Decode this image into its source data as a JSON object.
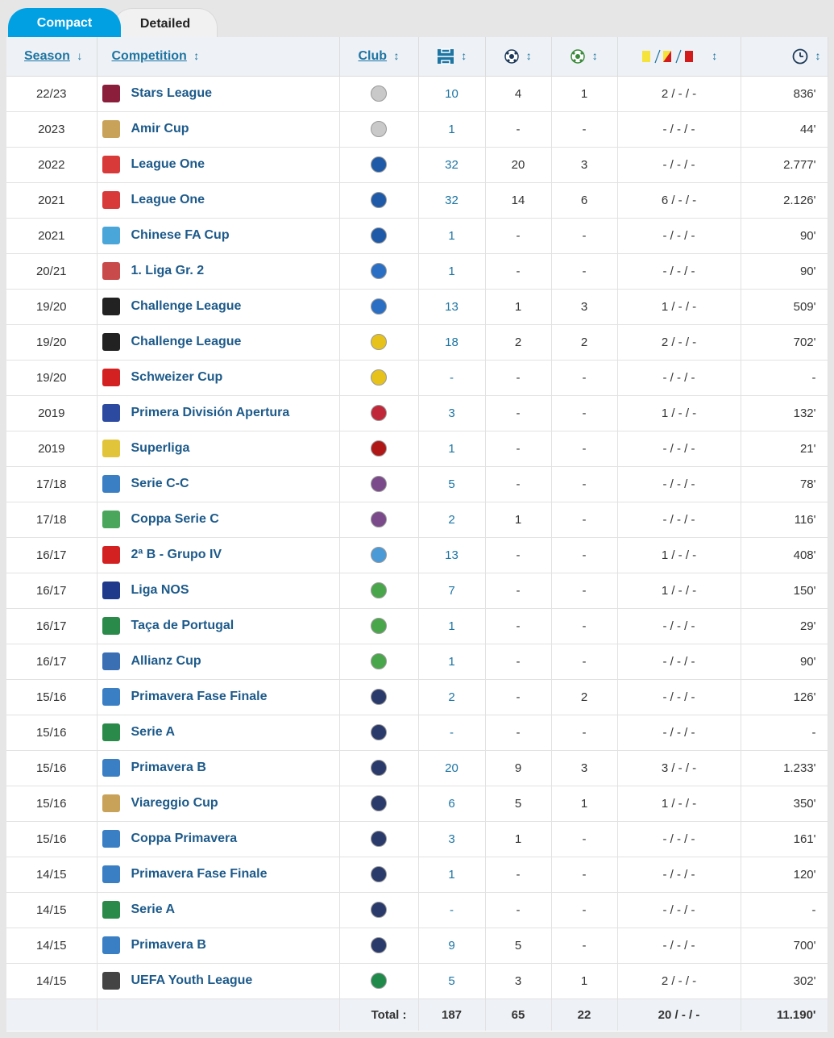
{
  "tabs": {
    "compact": "Compact",
    "detailed": "Detailed"
  },
  "header": {
    "season": "Season",
    "competition": "Competition",
    "club": "Club",
    "sort_down": "↓",
    "sort_both": "↕"
  },
  "rows": [
    {
      "season": "22/23",
      "competition": "Stars League",
      "apps": "10",
      "goals": "4",
      "assists": "1",
      "cards": "2 / - / -",
      "minutes": "836'",
      "icon_color": "#8a1e3b",
      "club_color": "#c9c9c9"
    },
    {
      "season": "2023",
      "competition": "Amir Cup",
      "apps": "1",
      "goals": "-",
      "assists": "-",
      "cards": "- / - / -",
      "minutes": "44'",
      "icon_color": "#c9a25a",
      "club_color": "#c9c9c9"
    },
    {
      "season": "2022",
      "competition": "League One",
      "apps": "32",
      "goals": "20",
      "assists": "3",
      "cards": "- / - / -",
      "minutes": "2.777'",
      "icon_color": "#d83a3a",
      "club_color": "#1f5aa8"
    },
    {
      "season": "2021",
      "competition": "League One",
      "apps": "32",
      "goals": "14",
      "assists": "6",
      "cards": "6 / - / -",
      "minutes": "2.126'",
      "icon_color": "#d83a3a",
      "club_color": "#1f5aa8"
    },
    {
      "season": "2021",
      "competition": "Chinese FA Cup",
      "apps": "1",
      "goals": "-",
      "assists": "-",
      "cards": "- / - / -",
      "minutes": "90'",
      "icon_color": "#4aa6d8",
      "club_color": "#1f5aa8"
    },
    {
      "season": "20/21",
      "competition": "1. Liga Gr. 2",
      "apps": "1",
      "goals": "-",
      "assists": "-",
      "cards": "- / - / -",
      "minutes": "90'",
      "icon_color": "#c94a4a",
      "club_color": "#2a6fc4"
    },
    {
      "season": "19/20",
      "competition": "Challenge League",
      "apps": "13",
      "goals": "1",
      "assists": "3",
      "cards": "1 / - / -",
      "minutes": "509'",
      "icon_color": "#222222",
      "club_color": "#2a6fc4"
    },
    {
      "season": "19/20",
      "competition": "Challenge League",
      "apps": "18",
      "goals": "2",
      "assists": "2",
      "cards": "2 / - / -",
      "minutes": "702'",
      "icon_color": "#222222",
      "club_color": "#e6c21a"
    },
    {
      "season": "19/20",
      "competition": "Schweizer Cup",
      "apps": "-",
      "goals": "-",
      "assists": "-",
      "cards": "- / - / -",
      "minutes": "-",
      "icon_color": "#d32020",
      "club_color": "#e6c21a"
    },
    {
      "season": "2019",
      "competition": "Primera División Apertura",
      "apps": "3",
      "goals": "-",
      "assists": "-",
      "cards": "1 / - / -",
      "minutes": "132'",
      "icon_color": "#2b4aa0",
      "club_color": "#c0283a"
    },
    {
      "season": "2019",
      "competition": "Superliga",
      "apps": "1",
      "goals": "-",
      "assists": "-",
      "cards": "- / - / -",
      "minutes": "21'",
      "icon_color": "#e2c43a",
      "club_color": "#b01818"
    },
    {
      "season": "17/18",
      "competition": "Serie C-C",
      "apps": "5",
      "goals": "-",
      "assists": "-",
      "cards": "- / - / -",
      "minutes": "78'",
      "icon_color": "#3a7fc4",
      "club_color": "#7a4a8a"
    },
    {
      "season": "17/18",
      "competition": "Coppa Serie C",
      "apps": "2",
      "goals": "1",
      "assists": "-",
      "cards": "- / - / -",
      "minutes": "116'",
      "icon_color": "#4aa65a",
      "club_color": "#7a4a8a"
    },
    {
      "season": "16/17",
      "competition": "2ª B - Grupo IV",
      "apps": "13",
      "goals": "-",
      "assists": "-",
      "cards": "1 / - / -",
      "minutes": "408'",
      "icon_color": "#d32020",
      "club_color": "#4a9ad8"
    },
    {
      "season": "16/17",
      "competition": "Liga NOS",
      "apps": "7",
      "goals": "-",
      "assists": "-",
      "cards": "1 / - / -",
      "minutes": "150'",
      "icon_color": "#1f3a8a",
      "club_color": "#4aa64a"
    },
    {
      "season": "16/17",
      "competition": "Taça de Portugal",
      "apps": "1",
      "goals": "-",
      "assists": "-",
      "cards": "- / - / -",
      "minutes": "29'",
      "icon_color": "#2a8a4a",
      "club_color": "#4aa64a"
    },
    {
      "season": "16/17",
      "competition": "Allianz Cup",
      "apps": "1",
      "goals": "-",
      "assists": "-",
      "cards": "- / - / -",
      "minutes": "90'",
      "icon_color": "#3a6fb4",
      "club_color": "#4aa64a"
    },
    {
      "season": "15/16",
      "competition": "Primavera Fase Finale",
      "apps": "2",
      "goals": "-",
      "assists": "2",
      "cards": "- / - / -",
      "minutes": "126'",
      "icon_color": "#3a7fc4",
      "club_color": "#2a3a6a"
    },
    {
      "season": "15/16",
      "competition": "Serie A",
      "apps": "-",
      "goals": "-",
      "assists": "-",
      "cards": "- / - / -",
      "minutes": "-",
      "icon_color": "#2a8a4a",
      "club_color": "#2a3a6a"
    },
    {
      "season": "15/16",
      "competition": "Primavera B",
      "apps": "20",
      "goals": "9",
      "assists": "3",
      "cards": "3 / - / -",
      "minutes": "1.233'",
      "icon_color": "#3a7fc4",
      "club_color": "#2a3a6a"
    },
    {
      "season": "15/16",
      "competition": "Viareggio Cup",
      "apps": "6",
      "goals": "5",
      "assists": "1",
      "cards": "1 / - / -",
      "minutes": "350'",
      "icon_color": "#c9a25a",
      "club_color": "#2a3a6a"
    },
    {
      "season": "15/16",
      "competition": "Coppa Primavera",
      "apps": "3",
      "goals": "1",
      "assists": "-",
      "cards": "- / - / -",
      "minutes": "161'",
      "icon_color": "#3a7fc4",
      "club_color": "#2a3a6a"
    },
    {
      "season": "14/15",
      "competition": "Primavera Fase Finale",
      "apps": "1",
      "goals": "-",
      "assists": "-",
      "cards": "- / - / -",
      "minutes": "120'",
      "icon_color": "#3a7fc4",
      "club_color": "#2a3a6a"
    },
    {
      "season": "14/15",
      "competition": "Serie A",
      "apps": "-",
      "goals": "-",
      "assists": "-",
      "cards": "- / - / -",
      "minutes": "-",
      "icon_color": "#2a8a4a",
      "club_color": "#2a3a6a"
    },
    {
      "season": "14/15",
      "competition": "Primavera B",
      "apps": "9",
      "goals": "5",
      "assists": "-",
      "cards": "- / - / -",
      "minutes": "700'",
      "icon_color": "#3a7fc4",
      "club_color": "#2a3a6a"
    },
    {
      "season": "14/15",
      "competition": "UEFA Youth League",
      "apps": "5",
      "goals": "3",
      "assists": "1",
      "cards": "2 / - / -",
      "minutes": "302'",
      "icon_color": "#444444",
      "club_color": "#1f8a4a"
    }
  ],
  "totals": {
    "label": "Total :",
    "apps": "187",
    "goals": "65",
    "assists": "22",
    "cards": "20 / - / -",
    "minutes": "11.190'"
  },
  "colors": {
    "accent": "#00a0e3",
    "link": "#1d5a8a",
    "yellow": "#f5e23a",
    "red": "#d41b1b"
  }
}
